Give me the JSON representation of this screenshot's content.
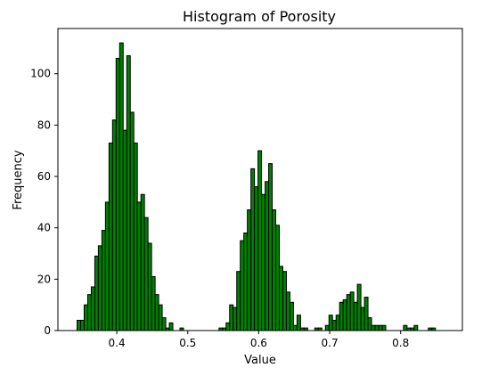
{
  "chart_data": {
    "type": "bar",
    "title": "Histogram of Porosity",
    "xlabel": "Value",
    "ylabel": "Frequency",
    "xlim": [
      0.317,
      0.887
    ],
    "ylim": [
      0,
      117.6
    ],
    "xticks": [
      0.4,
      0.5,
      0.6,
      0.7,
      0.8
    ],
    "xtick_labels": [
      "0.4",
      "0.5",
      "0.6",
      "0.7",
      "0.8"
    ],
    "yticks": [
      0,
      20,
      40,
      60,
      80,
      100
    ],
    "ytick_labels": [
      "0",
      "20",
      "40",
      "60",
      "80",
      "100"
    ],
    "bin_start": 0.344,
    "bin_width": 0.005,
    "bar_color": "#008000",
    "edge_color": "#000000",
    "grid": false,
    "values": [
      4,
      4,
      10,
      14,
      17,
      29,
      33,
      39,
      50,
      73,
      82,
      106,
      112,
      78,
      107,
      85,
      73,
      50,
      53,
      44,
      34,
      21,
      14,
      10,
      5,
      1,
      3,
      0,
      0,
      1,
      0,
      0,
      0,
      0,
      0,
      0,
      0,
      0,
      0,
      0,
      1,
      1,
      3,
      10,
      9,
      23,
      35,
      38,
      47,
      63,
      56,
      70,
      53,
      58,
      65,
      47,
      41,
      25,
      23,
      15,
      11,
      2,
      6,
      1,
      1,
      0,
      0,
      1,
      1,
      0,
      2,
      6,
      4,
      6,
      11,
      12,
      14,
      15,
      11,
      18,
      9,
      13,
      5,
      2,
      2,
      2,
      2,
      0,
      0,
      0,
      0,
      0,
      2,
      1,
      1,
      2,
      0,
      0,
      0,
      1,
      1
    ]
  }
}
